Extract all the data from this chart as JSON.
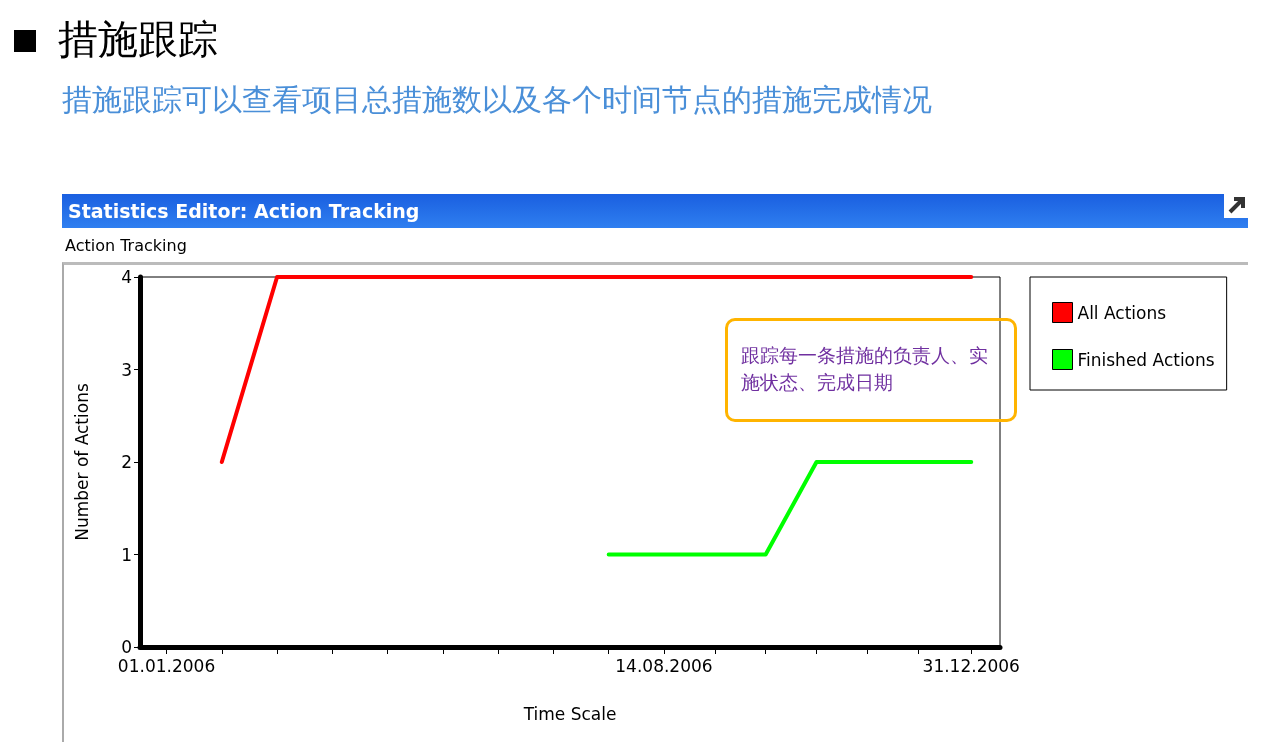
{
  "chart_data": {
    "type": "line",
    "title": "措施跟踪",
    "subtitle": "措施跟踪可以查看项目总措施数以及各个时间节点的措施完成情况",
    "annotations": [
      "Statistics Editor: Action Tracking",
      "Action Tracking",
      "跟踪每一条措施的负责人、实施状态、完成日期"
    ],
    "xlabel": "Time Scale",
    "ylabel": "Number of Actions",
    "series": [
      {
        "name": "All Actions",
        "color": "#ff0000",
        "x": [
          "2006-01-26",
          "2006-02-20",
          "2006-12-31"
        ],
        "values": [
          2,
          4,
          4
        ]
      },
      {
        "name": "Finished Actions",
        "color": "#00ff00",
        "x": [
          "2006-07-20",
          "2006-09-29",
          "2006-10-22",
          "2006-12-31"
        ],
        "values": [
          1,
          1,
          2,
          2
        ]
      }
    ],
    "xlim": [
      "2005-12-20",
      "2007-01-13"
    ],
    "xticks": [
      {
        "value": "2006-01-01",
        "label": "01.01.2006"
      },
      {
        "value": "2006-01-26",
        "label": null
      },
      {
        "value": "2006-02-20",
        "label": null
      },
      {
        "value": "2006-03-17",
        "label": null
      },
      {
        "value": "2006-04-11",
        "label": null
      },
      {
        "value": "2006-05-06",
        "label": null
      },
      {
        "value": "2006-05-31",
        "label": null
      },
      {
        "value": "2006-06-25",
        "label": null
      },
      {
        "value": "2006-07-20",
        "label": null
      },
      {
        "value": "2006-08-14",
        "label": "14.08.2006"
      },
      {
        "value": "2006-09-06",
        "label": null
      },
      {
        "value": "2006-09-29",
        "label": null
      },
      {
        "value": "2006-10-22",
        "label": null
      },
      {
        "value": "2006-11-14",
        "label": null
      },
      {
        "value": "2006-12-07",
        "label": null
      },
      {
        "value": "2006-12-31",
        "label": "31.12.2006"
      }
    ],
    "ylim": [
      0,
      4
    ],
    "yticks": [
      0,
      1,
      2,
      3,
      4
    ],
    "grid": false,
    "legend": "right",
    "marker": "none",
    "line_style": "solid"
  }
}
